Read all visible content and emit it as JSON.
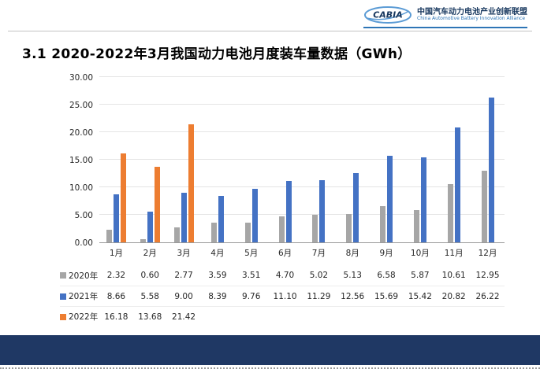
{
  "header": {
    "logo_text": "CABIA",
    "org_name_cn": "中国汽车动力电池产业创新联盟",
    "org_name_en": "China Automotive Battery Innovation Alliance"
  },
  "title": "3.1 2020-2022年3月我国动力电池月度装车量数据（GWh）",
  "colors": {
    "series_2020": "#a6a6a6",
    "series_2021": "#4472c4",
    "series_2022": "#ed7d31",
    "footer_bar": "#1f3864",
    "logo_blue": "#2e75b6"
  },
  "chart_data": {
    "type": "bar",
    "title": "3.1 2020-2022年3月我国动力电池月度装车量数据（GWh）",
    "xlabel": "",
    "ylabel": "",
    "ylim": [
      0,
      30
    ],
    "ytick_step": 5,
    "ytick_labels": [
      "0.00",
      "5.00",
      "10.00",
      "15.00",
      "20.00",
      "25.00",
      "30.00"
    ],
    "grid": true,
    "legend_position": "left-of-table-rows",
    "categories": [
      "1月",
      "2月",
      "3月",
      "4月",
      "5月",
      "6月",
      "7月",
      "8月",
      "9月",
      "10月",
      "11月",
      "12月"
    ],
    "series": [
      {
        "name": "2020年",
        "color": "#a6a6a6",
        "values": [
          2.32,
          0.6,
          2.77,
          3.59,
          3.51,
          4.7,
          5.02,
          5.13,
          6.58,
          5.87,
          10.61,
          12.95
        ]
      },
      {
        "name": "2021年",
        "color": "#4472c4",
        "values": [
          8.66,
          5.58,
          9.0,
          8.39,
          9.76,
          11.1,
          11.29,
          12.56,
          15.69,
          15.42,
          20.82,
          26.22
        ]
      },
      {
        "name": "2022年",
        "color": "#ed7d31",
        "values": [
          16.18,
          13.68,
          21.42,
          null,
          null,
          null,
          null,
          null,
          null,
          null,
          null,
          null
        ]
      }
    ]
  }
}
